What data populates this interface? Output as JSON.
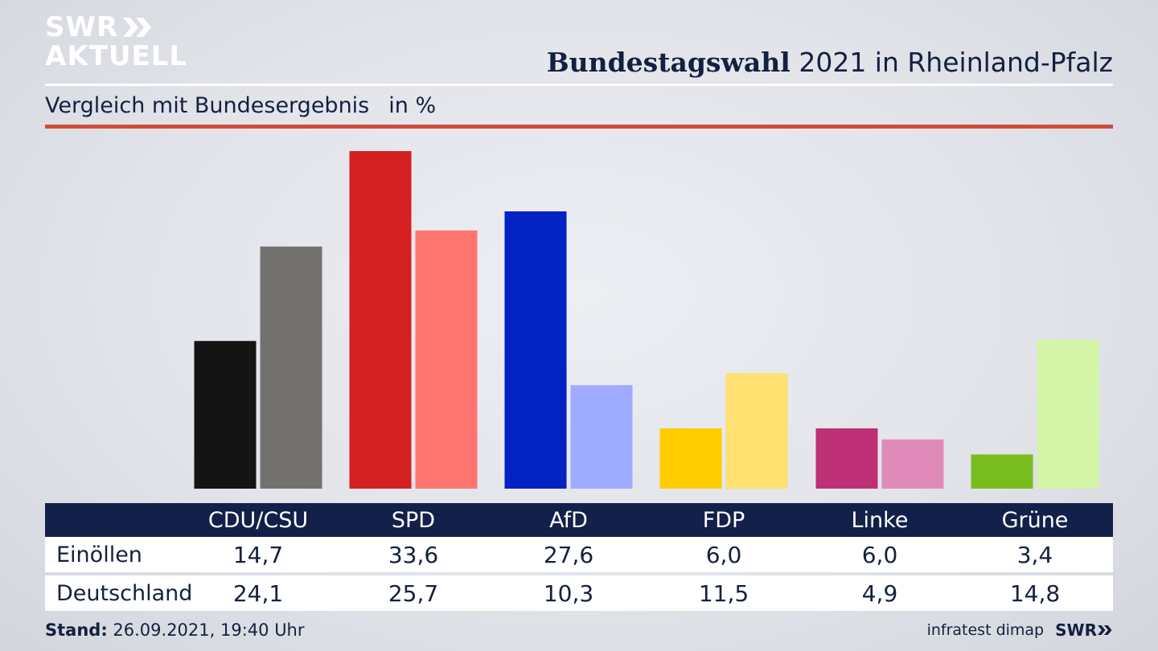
{
  "brand": {
    "line1": "SWR",
    "line2": "AKTUELL",
    "footer_logo": "SWR"
  },
  "header": {
    "title_bold": "Bundestagswahl",
    "title_rest": "2021 in Rheinland-Pfalz",
    "subtitle": "Vergleich mit Bundesergebnis",
    "unit": "in %"
  },
  "chart_data": {
    "type": "bar",
    "categories": [
      "CDU/CSU",
      "SPD",
      "AfD",
      "FDP",
      "Linke",
      "Grüne"
    ],
    "series": [
      {
        "name": "Einöllen",
        "values": [
          14.7,
          33.6,
          27.6,
          6.0,
          6.0,
          3.4
        ],
        "colors": [
          "#141414",
          "#d42020",
          "#0222c4",
          "#ffcc00",
          "#be3076",
          "#78bc1e"
        ]
      },
      {
        "name": "Deutschland",
        "values": [
          24.1,
          25.7,
          10.3,
          11.5,
          4.9,
          14.8
        ],
        "colors": [
          "#737170",
          "#ff7570",
          "#9eabff",
          "#ffe070",
          "#e08ab9",
          "#d4f5a8"
        ]
      }
    ],
    "ylim": [
      0,
      33.6
    ],
    "grid": false,
    "legend": "table-below"
  },
  "table": {
    "headers": [
      "CDU/CSU",
      "SPD",
      "AfD",
      "FDP",
      "Linke",
      "Grüne"
    ],
    "rows": [
      {
        "label": "Einöllen",
        "cells": [
          "14,7",
          "33,6",
          "27,6",
          "6,0",
          "6,0",
          "3,4"
        ]
      },
      {
        "label": "Deutschland",
        "cells": [
          "24,1",
          "25,7",
          "10,3",
          "11,5",
          "4,9",
          "14,8"
        ]
      }
    ]
  },
  "footer": {
    "stand_label": "Stand:",
    "stand_value": "26.09.2021, 19:40 Uhr",
    "source": "infratest dimap"
  }
}
